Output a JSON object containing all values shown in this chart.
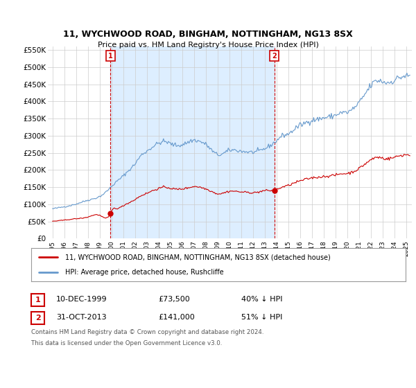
{
  "title": "11, WYCHWOOD ROAD, BINGHAM, NOTTINGHAM, NG13 8SX",
  "subtitle": "Price paid vs. HM Land Registry's House Price Index (HPI)",
  "legend_line1": "11, WYCHWOOD ROAD, BINGHAM, NOTTINGHAM, NG13 8SX (detached house)",
  "legend_line2": "HPI: Average price, detached house, Rushcliffe",
  "footer1": "Contains HM Land Registry data © Crown copyright and database right 2024.",
  "footer2": "This data is licensed under the Open Government Licence v3.0.",
  "annotation1": {
    "label": "1",
    "date": "10-DEC-1999",
    "price": "£73,500",
    "hpi_rel": "40% ↓ HPI"
  },
  "annotation2": {
    "label": "2",
    "date": "31-OCT-2013",
    "price": "£141,000",
    "hpi_rel": "51% ↓ HPI"
  },
  "red_color": "#cc0000",
  "blue_color": "#6699cc",
  "blue_fill_color": "#ddeeff",
  "background_color": "#ffffff",
  "grid_color": "#cccccc",
  "ylim": [
    0,
    560000
  ],
  "yticks": [
    0,
    50000,
    100000,
    150000,
    200000,
    250000,
    300000,
    350000,
    400000,
    450000,
    500000,
    550000
  ],
  "ytick_labels": [
    "£0",
    "£50K",
    "£100K",
    "£150K",
    "£200K",
    "£250K",
    "£300K",
    "£350K",
    "£400K",
    "£450K",
    "£500K",
    "£550K"
  ],
  "sale1_x": 1999.92,
  "sale1_y": 73500,
  "sale2_x": 2013.83,
  "sale2_y": 141000,
  "xlabel_years": [
    1995,
    1996,
    1997,
    1998,
    1999,
    2000,
    2001,
    2002,
    2003,
    2004,
    2005,
    2006,
    2007,
    2008,
    2009,
    2010,
    2011,
    2012,
    2013,
    2014,
    2015,
    2016,
    2017,
    2018,
    2019,
    2020,
    2021,
    2022,
    2023,
    2024,
    2025
  ],
  "xlim": [
    1994.6,
    2025.5
  ]
}
